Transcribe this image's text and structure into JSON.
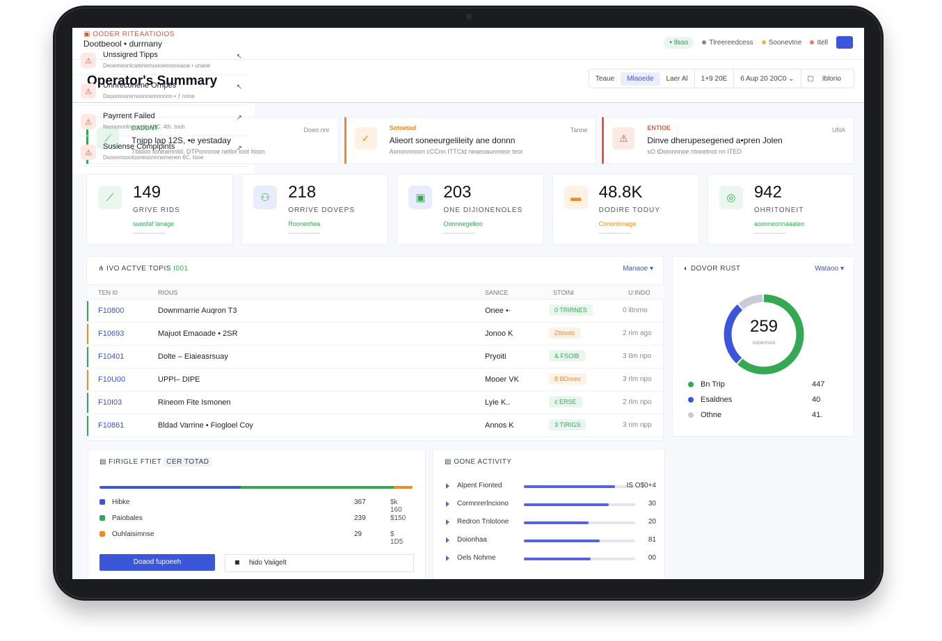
{
  "app": {
    "title": "Dootbeool • durrnany"
  },
  "topbar": {
    "live_label": "• Ilsso",
    "item2": "Tlreereedcess",
    "item3": "Soonevtne",
    "item4": "Itell"
  },
  "header": {
    "title": "Operator's Summary",
    "filters": [
      "Teaue",
      "Mlaoede",
      "Laer Al",
      "1+9 20E",
      "6 Aup 20 20C0 ⌄",
      "Iblorio"
    ]
  },
  "alerts": [
    {
      "tag": "DADDNT",
      "title": "Tnjpp lap 12S, •e yestaday",
      "sub": "Tbldoo toneamnild, DTPonnnoe netlor loot Itoon",
      "when": "Doeo nnr",
      "color": "#34a853",
      "tint": "#e7f6ec",
      "icon": "⟋"
    },
    {
      "tag": "Sotoetad",
      "title": "Alieort soneeurgelileity ane donnn",
      "sub": "Aononnnoon cCCnn ITTCtd neaeoaunmeor teor",
      "when": "Tanne",
      "color": "#f08a24",
      "tint": "#fff1e3",
      "icon": "✓"
    },
    {
      "tag": "ENTIOE",
      "title": "Dinve dherupesegened a•pren Jolen",
      "sub": "sO tDoionnnoe ntnoetnot nn ITED",
      "when": "UNA",
      "color": "#e45a3c",
      "tint": "#fde9e4",
      "icon": "⚠"
    }
  ],
  "kpis": [
    {
      "value": "149",
      "label": "GRIVE RIDS",
      "trend": "suoofaf lanage",
      "color": "#34a853",
      "tint": "#e9f7ee",
      "icon": "⟋"
    },
    {
      "value": "218",
      "label": "ORRIVE DOVEPS",
      "trend": "Rooneofiea",
      "color": "#34a853",
      "tint": "#e9ecfb",
      "icon": "⚇"
    },
    {
      "value": "203",
      "label": "ONE DIJIONENOLES",
      "trend": "Oonnnegelloo",
      "color": "#34a853",
      "tint": "#e9ecfb",
      "icon": "▣"
    },
    {
      "value": "48.8K",
      "label": "DODIRE TODUY",
      "trend": "Cnnonlnnage",
      "color": "#f08a24",
      "tint": "#fff1e3",
      "icon": "▬"
    },
    {
      "value": "942",
      "label": "OHRITONEIT",
      "trend": "aoonneonnaaaleo",
      "color": "#34a853",
      "tint": "#e9f7ee",
      "icon": "◎"
    }
  ],
  "trips": {
    "title": "IVO ACTVE TOPIS",
    "title_accent": "I001",
    "manage": "Manaoe ▾",
    "columns": [
      "TEN I0",
      "RIOUS",
      "SANICE",
      "STOINI",
      "U:INDO"
    ],
    "rows": [
      {
        "id": "F10800",
        "route": "Downrnarrie Auqron T3",
        "driver": "Onee •·",
        "status": "0 TRIRNES",
        "when": "0 iltnrno",
        "color": "#34a853",
        "bg": "#e8f6ee"
      },
      {
        "id": "F10693",
        "route": "Majuot Emaoade • 2SR",
        "driver": "Jonoo K",
        "status": "Ztlovos",
        "when": "2 rim ago",
        "color": "#f08a24",
        "bg": "#fff1e3"
      },
      {
        "id": "F10401",
        "route": "Dolte – Eiaieasrsuay",
        "driver": "Pryoiti",
        "status": "& FSOIB",
        "when": "3 tlm npo",
        "color": "#34a853",
        "bg": "#e8f6ee"
      },
      {
        "id": "F10U00",
        "route": "UPPI– DIPE",
        "driver": "Mooer VK",
        "status": "8 BDnres",
        "when": "3 rlm npo",
        "color": "#f08a24",
        "bg": "#fff1e3"
      },
      {
        "id": "F10I03",
        "route": "Rineom Fite Ismonen",
        "driver": "Lyie K..",
        "status": "ć ERSE",
        "when": "2 rlm npo",
        "color": "#34a853",
        "bg": "#e8f6ee"
      },
      {
        "id": "F10861",
        "route": "Bldad Varrine • Fiogloel Coy",
        "driver": "Annos K",
        "status": "3 TIRIGS",
        "when": "3 rim npp",
        "color": "#34a853",
        "bg": "#e8f6ee"
      }
    ]
  },
  "donor": {
    "title": "DOVOR RUST",
    "manage": "Wataoo ▾",
    "total": "259",
    "total_sub": "sopanrsoo",
    "segments": [
      {
        "name": "Bn Trip",
        "value": "447",
        "pct": 62,
        "color": "#34a853"
      },
      {
        "name": "Esaldnes",
        "value": "40",
        "pct": 27,
        "color": "#3b56d9"
      },
      {
        "name": "Othne",
        "value": "41.",
        "pct": 11,
        "color": "#c9ccd6"
      }
    ]
  },
  "issues": {
    "title": "OODER RITEAATIOIOS",
    "items": [
      {
        "title": "Unssigred Tipps",
        "sub": "Deoemeonlcatenemuooeeoonoaoa • unaoe",
        "arrow": "↖"
      },
      {
        "title": "Unnreconene Ornpes",
        "sub": "Dooomoorernoonnemnnnnn • ƒ nnne",
        "arrow": "↖"
      },
      {
        "title": "Payrrent Failed",
        "sub": "Nemonnnlnenetde MIC. 4th. tooh",
        "arrow": "↗"
      },
      {
        "title": "Susiense Complpints",
        "sub": "Dooonnooolooneoonnnemenen 6C. tooe",
        "arrow": "↗"
      }
    ]
  },
  "fleet": {
    "title": "FIRIGLE FTIET",
    "title_accent": "CER TOTAD",
    "bar": [
      {
        "pct": 45,
        "color": "#3b56d9"
      },
      {
        "pct": 49,
        "color": "#34a853"
      },
      {
        "pct": 6,
        "color": "#f08a24"
      }
    ],
    "rows": [
      {
        "name": "Hibke",
        "n": "367",
        "m": "$k 160",
        "color": "#3b56d9"
      },
      {
        "name": "Paiobales",
        "n": "239",
        "m": "$150",
        "color": "#34a853"
      },
      {
        "name": "Ouhlaisimnse",
        "n": "29",
        "m": "$ 1D5",
        "color": "#f08a24"
      }
    ],
    "primary_btn": "Doaod fupoeeh",
    "secondary_btn": "hido Vaiigelt"
  },
  "activity": {
    "title": "OONE ACTIVITY",
    "rows": [
      {
        "name": "Alpent Fionted",
        "pct": 82,
        "value": "IS O$0+4"
      },
      {
        "name": "Cormnrerlnciono",
        "pct": 76,
        "value": "30"
      },
      {
        "name": "Redron Tnlotone",
        "pct": 58,
        "value": "20"
      },
      {
        "name": "Doionhaa",
        "pct": 68,
        "value": "81"
      },
      {
        "name": "Oels Nohme",
        "pct": 60,
        "value": "00"
      }
    ]
  }
}
